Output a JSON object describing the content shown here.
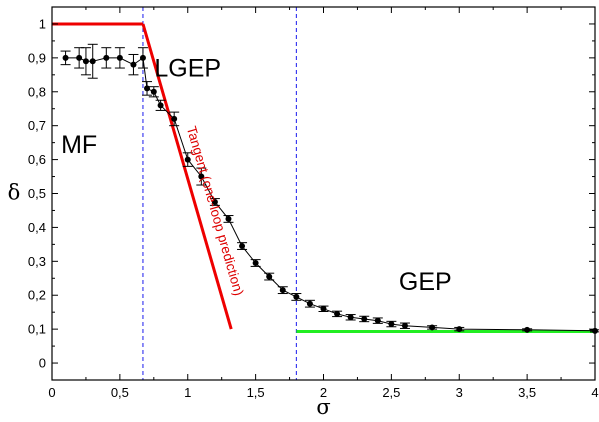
{
  "chart_data": {
    "type": "scatter",
    "title": "",
    "xlabel": "σ",
    "ylabel": "δ",
    "xlim": [
      0,
      4
    ],
    "ylim": [
      -0.05,
      1.05
    ],
    "x_ticks": [
      0,
      0.5,
      1,
      1.5,
      2,
      2.5,
      3,
      3.5,
      4
    ],
    "x_tick_labels": [
      "0",
      "0,5",
      "1",
      "1,5",
      "2",
      "2,5",
      "3",
      "3,5",
      "4"
    ],
    "y_ticks": [
      0,
      0.1,
      0.2,
      0.3,
      0.4,
      0.5,
      0.6,
      0.7,
      0.8,
      0.9,
      1
    ],
    "y_tick_labels": [
      "0",
      "0,1",
      "0,2",
      "0,3",
      "0,4",
      "0,5",
      "0,6",
      "0,7",
      "0,8",
      "0,9",
      "1"
    ],
    "grid": false,
    "series": [
      {
        "color": "#000000",
        "style": "line-markers-errorbars",
        "points": [
          {
            "x": 0.1,
            "y": 0.9,
            "err": 0.02
          },
          {
            "x": 0.2,
            "y": 0.9,
            "err": 0.03
          },
          {
            "x": 0.25,
            "y": 0.89,
            "err": 0.04
          },
          {
            "x": 0.3,
            "y": 0.89,
            "err": 0.05
          },
          {
            "x": 0.4,
            "y": 0.9,
            "err": 0.03
          },
          {
            "x": 0.5,
            "y": 0.9,
            "err": 0.03
          },
          {
            "x": 0.6,
            "y": 0.88,
            "err": 0.03
          },
          {
            "x": 0.67,
            "y": 0.9,
            "err": 0.03
          },
          {
            "x": 0.7,
            "y": 0.81,
            "err": 0.02
          },
          {
            "x": 0.75,
            "y": 0.8,
            "err": 0.015
          },
          {
            "x": 0.8,
            "y": 0.76,
            "err": 0.015
          },
          {
            "x": 0.9,
            "y": 0.72,
            "err": 0.02
          },
          {
            "x": 1.0,
            "y": 0.6,
            "err": 0.02
          },
          {
            "x": 1.1,
            "y": 0.55,
            "err": 0.025
          },
          {
            "x": 1.2,
            "y": 0.475,
            "err": 0.01
          },
          {
            "x": 1.3,
            "y": 0.425,
            "err": 0.01
          },
          {
            "x": 1.4,
            "y": 0.345,
            "err": 0.01
          },
          {
            "x": 1.5,
            "y": 0.295,
            "err": 0.01
          },
          {
            "x": 1.6,
            "y": 0.255,
            "err": 0.01
          },
          {
            "x": 1.7,
            "y": 0.215,
            "err": 0.01
          },
          {
            "x": 1.8,
            "y": 0.195,
            "err": 0.01
          },
          {
            "x": 1.9,
            "y": 0.175,
            "err": 0.01
          },
          {
            "x": 2.0,
            "y": 0.16,
            "err": 0.008
          },
          {
            "x": 2.1,
            "y": 0.145,
            "err": 0.008
          },
          {
            "x": 2.2,
            "y": 0.135,
            "err": 0.008
          },
          {
            "x": 2.3,
            "y": 0.13,
            "err": 0.008
          },
          {
            "x": 2.4,
            "y": 0.125,
            "err": 0.008
          },
          {
            "x": 2.5,
            "y": 0.115,
            "err": 0.008
          },
          {
            "x": 2.6,
            "y": 0.11,
            "err": 0.008
          },
          {
            "x": 2.8,
            "y": 0.105,
            "err": 0.005
          },
          {
            "x": 3.0,
            "y": 0.1,
            "err": 0.005
          },
          {
            "x": 3.5,
            "y": 0.098,
            "err": 0.003
          },
          {
            "x": 4.0,
            "y": 0.095,
            "err": 0.003
          }
        ]
      }
    ],
    "reference_lines": [
      {
        "color": "#ee0000",
        "points": [
          [
            0,
            1.0
          ],
          [
            0.67,
            1.0
          ]
        ]
      },
      {
        "color": "#ee0000",
        "points": [
          [
            0.67,
            1.0
          ],
          [
            1.32,
            0.1
          ]
        ]
      },
      {
        "color": "#22ee22",
        "points": [
          [
            1.8,
            0.093
          ],
          [
            4.0,
            0.093
          ]
        ]
      }
    ],
    "vertical_lines": [
      {
        "x": 0.67,
        "color": "#1a1aee",
        "style": "dashed"
      },
      {
        "x": 1.8,
        "color": "#1a1aee",
        "style": "dashed"
      }
    ],
    "annotations": [
      {
        "text": "MF",
        "x": 0.2,
        "y": 0.62,
        "color": "#000000",
        "rotation": 0
      },
      {
        "text": "LGEP",
        "x": 1.0,
        "y": 0.845,
        "color": "#000000",
        "rotation": 0
      },
      {
        "text": "GEP",
        "x": 2.75,
        "y": 0.215,
        "color": "#000000",
        "rotation": 0
      },
      {
        "text": "Tangent (one-loop prediction)",
        "x": 1.17,
        "y": 0.445,
        "color": "#dd0000",
        "rotation": 74
      }
    ]
  }
}
